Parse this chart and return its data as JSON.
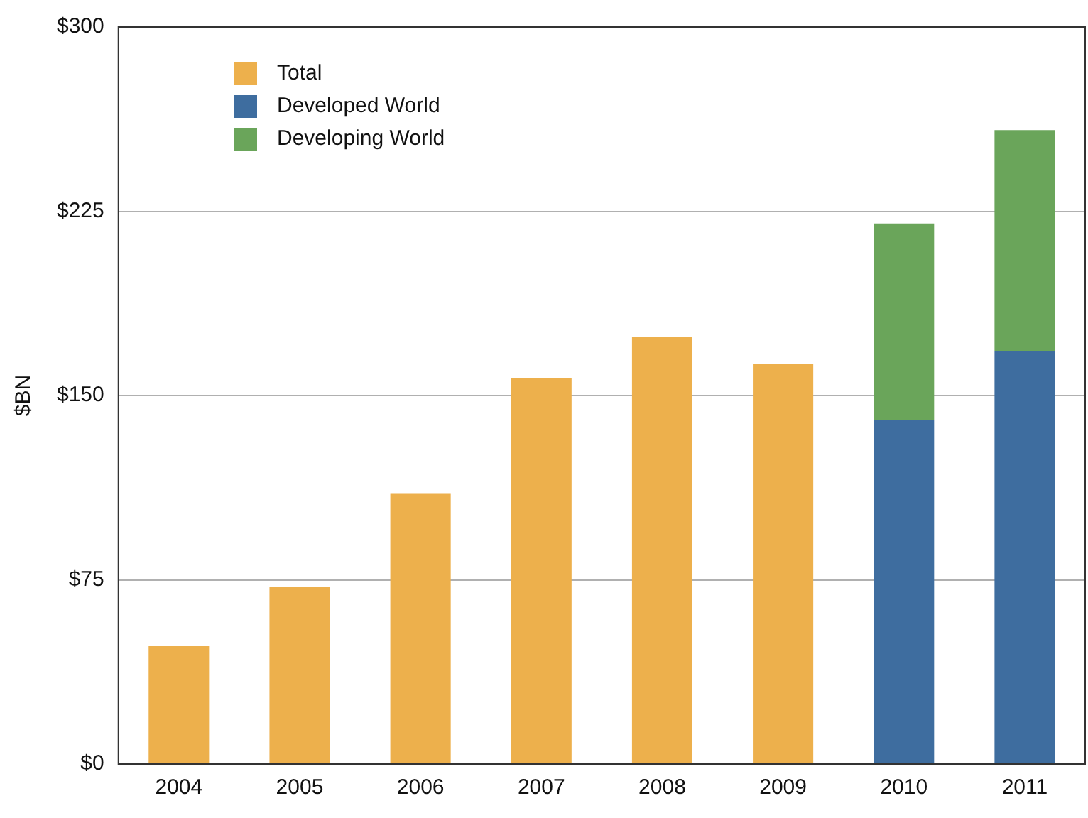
{
  "chart_data": {
    "type": "bar",
    "ylabel": "$BN",
    "categories": [
      "2004",
      "2005",
      "2006",
      "2007",
      "2008",
      "2009",
      "2010",
      "2011"
    ],
    "series": [
      {
        "name": "Total",
        "color": "#edb04c",
        "values": [
          48,
          72,
          110,
          157,
          174,
          163,
          null,
          null
        ]
      },
      {
        "name": "Developed World",
        "color": "#3e6d9f",
        "values": [
          null,
          null,
          null,
          null,
          null,
          null,
          140,
          168
        ]
      },
      {
        "name": "Developing World",
        "color": "#6aa55a",
        "values": [
          null,
          null,
          null,
          null,
          null,
          null,
          80,
          90
        ]
      }
    ],
    "stacked": true,
    "ylim": [
      0,
      300
    ],
    "yticks": [
      {
        "value": 0,
        "label": "$0"
      },
      {
        "value": 75,
        "label": "$75"
      },
      {
        "value": 150,
        "label": "$150"
      },
      {
        "value": 225,
        "label": "$225"
      },
      {
        "value": 300,
        "label": "$300"
      }
    ],
    "grid": "y",
    "legend": "top left"
  }
}
